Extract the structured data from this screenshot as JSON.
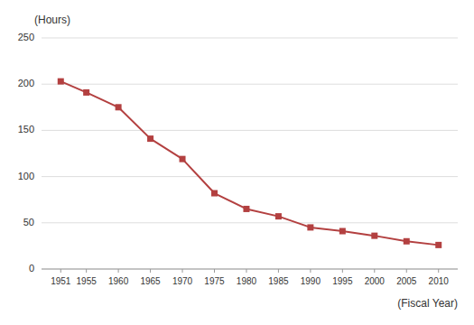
{
  "chart_data": {
    "type": "line",
    "x_label": "(Fiscal Year)",
    "y_label": "(Hours)",
    "x": [
      1951,
      1955,
      1960,
      1965,
      1970,
      1975,
      1980,
      1985,
      1990,
      1995,
      2000,
      2005,
      2010
    ],
    "values": [
      203,
      191,
      175,
      141,
      119,
      82,
      65,
      57,
      45,
      41,
      36,
      30,
      26
    ],
    "color": "#b34040",
    "marker": "square",
    "xlim": [
      1948,
      2013
    ],
    "xticks": [
      1951,
      1955,
      1960,
      1965,
      1970,
      1975,
      1980,
      1985,
      1990,
      1995,
      2000,
      2005,
      2010
    ],
    "ylim": [
      0,
      250
    ],
    "yticks": [
      0,
      50,
      100,
      150,
      200,
      250
    ],
    "grid": true
  }
}
